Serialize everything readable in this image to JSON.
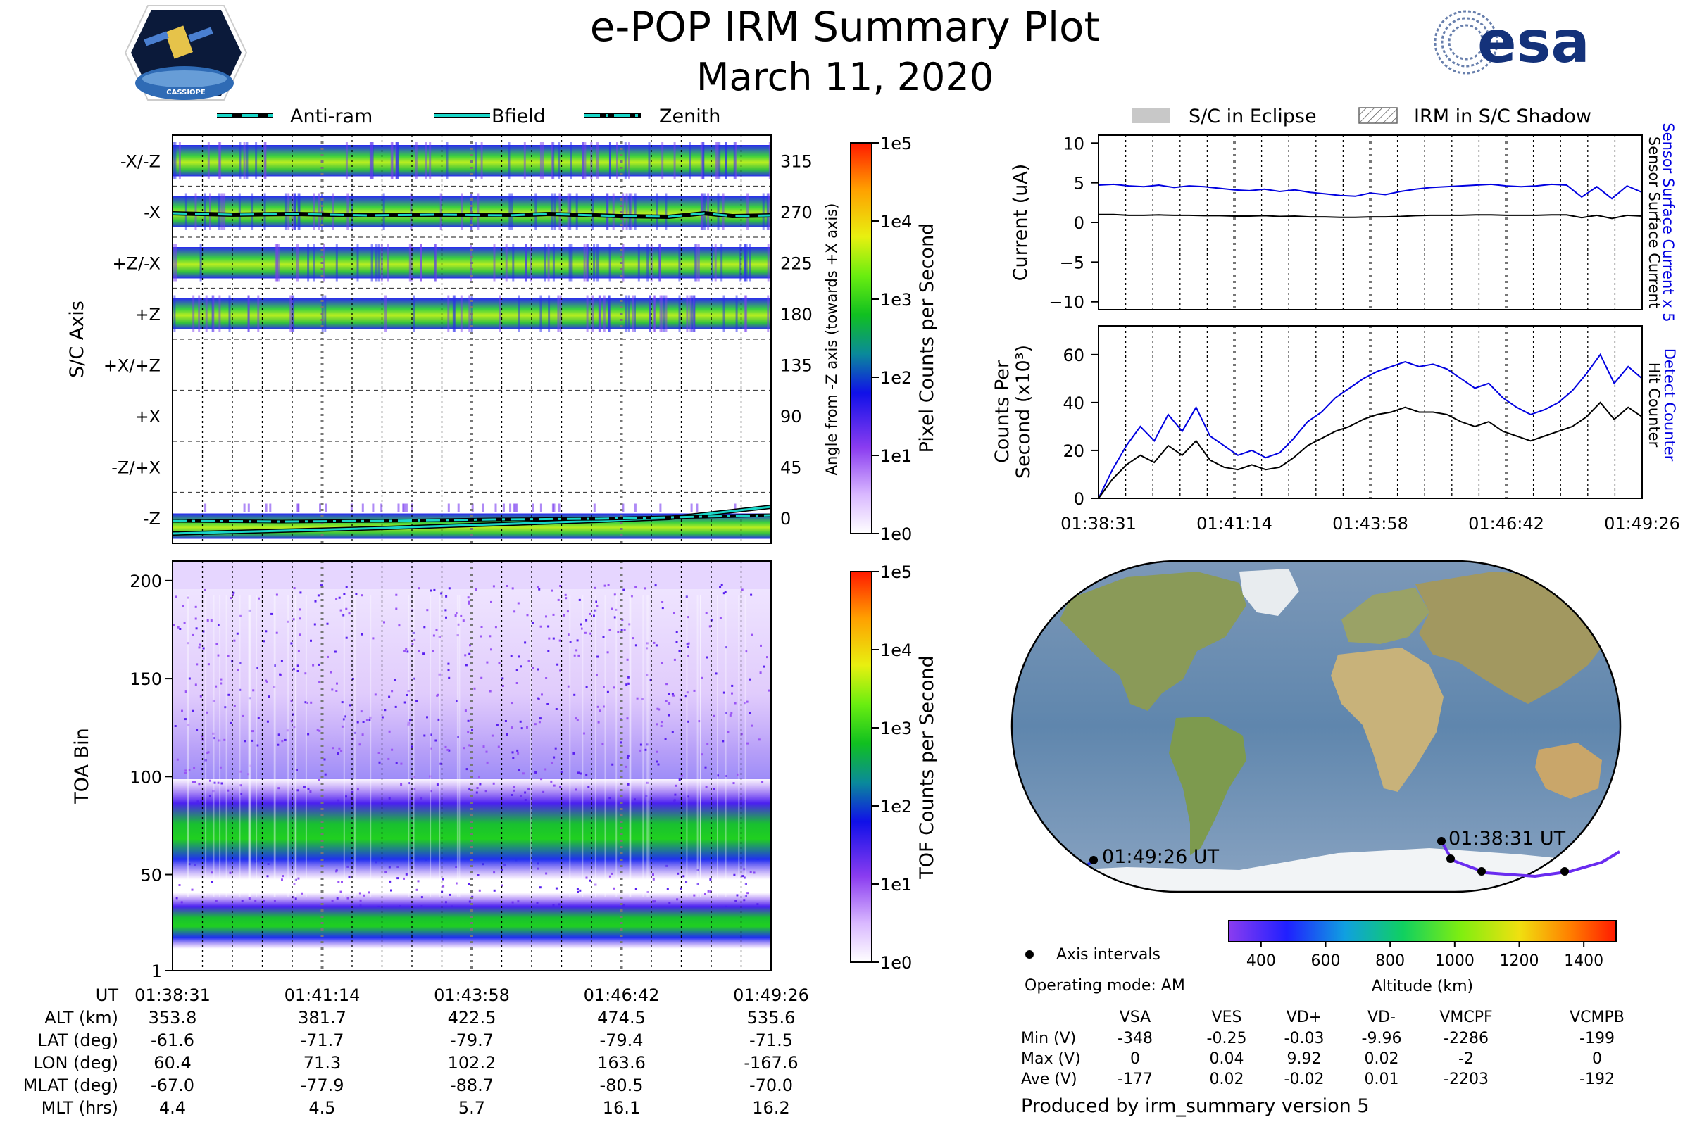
{
  "header": {
    "title": "e-POP IRM Summary Plot",
    "date": "March 11, 2020"
  },
  "logos": {
    "cassiope_text": "CASSIOPE",
    "esa_text": "esa"
  },
  "colors": {
    "sensor_current": "#0000e0",
    "hit_counter": "#000000",
    "orbit_track": "#6a2cf0",
    "cyan_lines": "#19d6c8"
  },
  "left_legend": [
    {
      "label": "Anti-ram",
      "style": "dashed"
    },
    {
      "label": "Bfield",
      "style": "solid"
    },
    {
      "label": "Zenith",
      "style": "dashdot"
    }
  ],
  "right_legend": [
    {
      "label": "S/C in Eclipse",
      "style": "gray-fill"
    },
    {
      "label": "IRM in S/C Shadow",
      "style": "hatch"
    }
  ],
  "time_ticks": [
    "01:38:31",
    "01:41:14",
    "01:43:58",
    "01:46:42",
    "01:49:26"
  ],
  "right_time_ticks": [
    "01:38:31",
    "01:41:14",
    "01:43:58",
    "01:46:42",
    "01:49:26"
  ],
  "chart_data": [
    {
      "id": "pixel_spectrogram",
      "type": "heatmap",
      "ylabel": "S/C Axis",
      "y_ticks_left": [
        "-X/-Z",
        "-X",
        "+Z/-X",
        "+Z",
        "+X/+Z",
        "+X",
        "-Z/+X",
        "-Z"
      ],
      "y_ticks_right": [
        "315",
        "270",
        "225",
        "180",
        "135",
        "90",
        "45",
        "0"
      ],
      "ylabel_right": "Angle from -Z axis (towards +X axis)",
      "colorbar": {
        "label": "Pixel Counts per Second",
        "ticks": [
          "1e5",
          "1e4",
          "1e3",
          "1e2",
          "1e1",
          "1e0"
        ]
      }
    },
    {
      "id": "toa_spectrogram",
      "type": "heatmap",
      "ylabel": "TOA Bin",
      "y_ticks": [
        "200",
        "150",
        "100",
        "50",
        "1"
      ],
      "ylim": [
        1,
        210
      ],
      "colorbar": {
        "label": "TOF Counts per Second",
        "ticks": [
          "1e5",
          "1e4",
          "1e3",
          "1e2",
          "1e1",
          "1e0"
        ]
      }
    },
    {
      "id": "current_plot",
      "type": "line",
      "ylabel": "Current (uA)",
      "ylim": [
        -11,
        11
      ],
      "y_ticks": [
        "10",
        "5",
        "0",
        "−5",
        "−10"
      ],
      "right_label_1": "Sensor Surface Current x 5",
      "right_label_2": "Sensor Surface Current",
      "series": [
        {
          "name": "Sensor Surface Current x 5",
          "values": [
            4.7,
            4.8,
            4.6,
            4.5,
            4.7,
            4.4,
            4.6,
            4.5,
            4.3,
            4.1,
            4.0,
            4.2,
            3.9,
            4.1,
            3.8,
            3.6,
            3.4,
            3.3,
            3.7,
            3.5,
            3.9,
            4.2,
            4.4,
            4.5,
            4.6,
            4.7,
            4.8,
            4.6,
            4.5,
            4.6,
            4.8,
            4.7,
            3.2,
            4.5,
            3.0,
            4.6,
            3.8
          ]
        },
        {
          "name": "Sensor Surface Current",
          "values": [
            1.0,
            1.0,
            0.9,
            0.9,
            0.95,
            0.9,
            0.9,
            0.85,
            0.85,
            0.8,
            0.8,
            0.85,
            0.75,
            0.8,
            0.7,
            0.7,
            0.65,
            0.65,
            0.7,
            0.7,
            0.75,
            0.85,
            0.9,
            0.9,
            0.9,
            0.95,
            0.95,
            0.9,
            0.9,
            0.9,
            0.95,
            0.95,
            0.6,
            0.9,
            0.5,
            0.9,
            0.8
          ]
        }
      ]
    },
    {
      "id": "counts_plot",
      "type": "line",
      "ylabel_1": "Counts Per",
      "ylabel_2": "Second (x10³)",
      "ylim": [
        0,
        72
      ],
      "y_ticks": [
        "60",
        "40",
        "20",
        "0"
      ],
      "right_label_1": "Detect Counter",
      "right_label_2": "Hit Counter",
      "series": [
        {
          "name": "Detect Counter",
          "values": [
            0,
            12,
            22,
            30,
            24,
            35,
            28,
            38,
            26,
            22,
            18,
            20,
            17,
            19,
            25,
            32,
            36,
            42,
            46,
            50,
            53,
            55,
            57,
            55,
            56,
            54,
            50,
            46,
            48,
            42,
            38,
            35,
            37,
            40,
            45,
            52,
            60,
            48,
            55,
            50
          ]
        },
        {
          "name": "Hit Counter",
          "values": [
            0,
            8,
            14,
            18,
            15,
            22,
            18,
            24,
            16,
            13,
            12,
            14,
            12,
            13,
            17,
            22,
            25,
            28,
            30,
            33,
            35,
            36,
            38,
            36,
            36,
            35,
            32,
            30,
            32,
            28,
            26,
            24,
            26,
            28,
            30,
            34,
            40,
            33,
            38,
            34
          ]
        }
      ]
    }
  ],
  "map": {
    "start_label": "01:38:31 UT",
    "end_label": "01:49:26 UT",
    "legend_label": "Axis intervals",
    "altitude_label": "Altitude (km)",
    "altitude_ticks": [
      "400",
      "600",
      "800",
      "1000",
      "1200",
      "1400"
    ]
  },
  "ephemeris": {
    "rows": [
      {
        "label": "UT",
        "values": [
          "01:38:31",
          "01:41:14",
          "01:43:58",
          "01:46:42",
          "01:49:26"
        ]
      },
      {
        "label": "ALT (km)",
        "values": [
          "353.8",
          "381.7",
          "422.5",
          "474.5",
          "535.6"
        ]
      },
      {
        "label": "LAT (deg)",
        "values": [
          "-61.6",
          "-71.7",
          "-79.7",
          "-79.4",
          "-71.5"
        ]
      },
      {
        "label": "LON (deg)",
        "values": [
          "60.4",
          "71.3",
          "102.2",
          "163.6",
          "-167.6"
        ]
      },
      {
        "label": "MLAT (deg)",
        "values": [
          "-67.0",
          "-77.9",
          "-88.7",
          "-80.5",
          "-70.0"
        ]
      },
      {
        "label": "MLT (hrs)",
        "values": [
          "4.4",
          "4.5",
          "5.7",
          "16.1",
          "16.2"
        ]
      }
    ]
  },
  "mode": "Operating mode: AM",
  "voltage_table": {
    "headers": [
      "VSA",
      "VES",
      "VD+",
      "VD-",
      "VMCPF",
      "VCMPB"
    ],
    "rows": [
      {
        "label": "Min (V)",
        "values": [
          "-348",
          "-0.25",
          "-0.03",
          "-9.96",
          "-2286",
          "-199"
        ]
      },
      {
        "label": "Max (V)",
        "values": [
          "0",
          "0.04",
          "9.92",
          "0.02",
          "-2",
          "0"
        ]
      },
      {
        "label": "Ave (V)",
        "values": [
          "-177",
          "0.02",
          "-0.02",
          "0.01",
          "-2203",
          "-192"
        ]
      }
    ]
  },
  "footer": "Produced by irm_summary version 5"
}
